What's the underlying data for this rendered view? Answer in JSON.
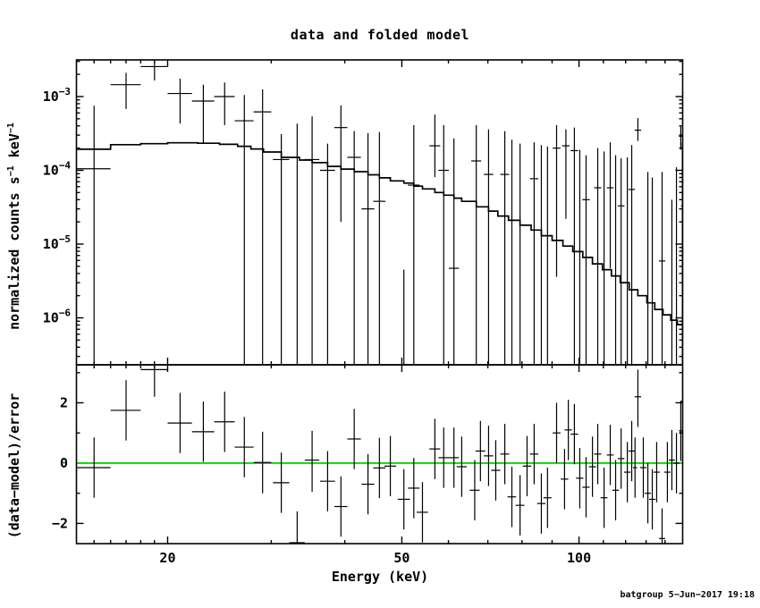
{
  "title": "data and folded model",
  "footer": {
    "credit": "batgroup  5−Jun−2017 19:18"
  },
  "colors": {
    "foreground": "#000000",
    "background": "#ffffff",
    "zero_line": "#00dd00"
  },
  "chart_data": {
    "type": "errorbar",
    "title": "data and folded model",
    "xlabel": "Energy (keV)",
    "xscale": "log",
    "xlim": [
      14,
      150
    ],
    "xticks_major": [
      20,
      50,
      100
    ],
    "xticks_minor": [
      15,
      16,
      17,
      18,
      19,
      30,
      40,
      60,
      70,
      80,
      90,
      110,
      120,
      130,
      140
    ],
    "legend": "none",
    "grid": false,
    "panels": {
      "top": {
        "ylabel": "normalized counts s−1 keV−1",
        "ylabel_parts": {
          "text1": "normalized counts s",
          "sup1": "−1",
          "text2": " keV",
          "sup2": "−1"
        },
        "yscale": "log",
        "ylim": [
          2.31e-07,
          0.00314
        ],
        "ytick_mantissa": "10",
        "yticks_exp": [
          -3,
          -4,
          -5,
          -6
        ],
        "model_steps": [
          [
            14,
            0.000193
          ],
          [
            16,
            0.000223
          ],
          [
            18,
            0.00023
          ],
          [
            20,
            0.000236
          ],
          [
            22.5,
            0.000233
          ],
          [
            24.5,
            0.000225
          ],
          [
            26.3,
            0.000212
          ],
          [
            27.7,
            0.000195
          ],
          [
            29.1,
            0.000177
          ],
          [
            31.2,
            0.00015
          ],
          [
            33.5,
            0.000138
          ],
          [
            35.2,
            0.000127
          ],
          [
            37.4,
            0.000113
          ],
          [
            39.4,
            0.000104
          ],
          [
            41.5,
            9.6e-05
          ],
          [
            43.8,
            8.7e-05
          ],
          [
            45.8,
            7.9e-05
          ],
          [
            47.8,
            7.2e-05
          ],
          [
            50.4,
            6.7e-05
          ],
          [
            52.4,
            6.1e-05
          ],
          [
            54.2,
            5.6e-05
          ],
          [
            56.9,
            5e-05
          ],
          [
            58.9,
            4.6e-05
          ],
          [
            61.3,
            4.2e-05
          ],
          [
            63.2,
            3.8e-05
          ],
          [
            66.9,
            3.2e-05
          ],
          [
            70.2,
            2.8e-05
          ],
          [
            72.8,
            2.4e-05
          ],
          [
            75.9,
            2.1e-05
          ],
          [
            79.4,
            1.8e-05
          ],
          [
            82.9,
            1.55e-05
          ],
          [
            86.3,
            1.3e-05
          ],
          [
            90,
            1.12e-05
          ],
          [
            93.9,
            9.4e-06
          ],
          [
            97.6,
            7.9e-06
          ],
          [
            101.5,
            6.6e-06
          ],
          [
            105.4,
            5.4e-06
          ],
          [
            109.6,
            4.5e-06
          ],
          [
            113.5,
            3.7e-06
          ],
          [
            117.5,
            3e-06
          ],
          [
            121.7,
            2.4e-06
          ],
          [
            125.9,
            2e-06
          ],
          [
            130.4,
            1.6e-06
          ],
          [
            134.5,
            1.3e-06
          ],
          [
            138.9,
            1.1e-06
          ],
          [
            143.2,
            9.3e-07
          ],
          [
            146.9,
            8.1e-07
          ]
        ],
        "points": [
          [
            15,
            1,
            0.000105,
            0.00075,
            null
          ],
          [
            17,
            1,
            0.00145,
            0.0021,
            0.00068
          ],
          [
            19,
            1,
            0.00255,
            null,
            0.00165
          ],
          [
            21,
            1,
            0.0011,
            0.00175,
            0.00043
          ],
          [
            23,
            1,
            0.00087,
            0.00145,
            0.00023
          ],
          [
            25,
            1,
            0.001,
            0.00155,
            0.00041
          ],
          [
            27,
            1,
            0.00047,
            0.00105,
            null
          ],
          [
            29,
            1,
            0.00062,
            0.00125,
            null
          ],
          [
            31.2,
            1,
            0.00014,
            0.00031,
            null
          ],
          [
            33.2,
            1,
            null,
            0.00043,
            null
          ],
          [
            35.2,
            1,
            0.00014,
            0.00054,
            null
          ],
          [
            37.4,
            1.1,
            0.0001,
            0.00023,
            null
          ],
          [
            39.4,
            1,
            0.00038,
            0.00076,
            2e-05
          ],
          [
            41.5,
            1.1,
            0.00015,
            0.00034,
            null
          ],
          [
            43.8,
            1.1,
            3e-05,
            0.00032,
            null
          ],
          [
            45.8,
            1.1,
            3.8e-05,
            0.00033,
            null
          ],
          [
            50.4,
            1.2,
            null,
            4.5e-06,
            null
          ],
          [
            52.4,
            1.2,
            6.3e-05,
            0.00041,
            null
          ],
          [
            56.9,
            1.2,
            0.000215,
            0.00057,
            8.1e-05
          ],
          [
            58.9,
            1.2,
            0.0001,
            0.00041,
            null
          ],
          [
            61.3,
            1.2,
            4.7e-06,
            0.00027,
            null
          ],
          [
            66.9,
            1.3,
            0.000134,
            0.00041,
            null
          ],
          [
            70.2,
            1.3,
            8.8e-05,
            0.00036,
            null
          ],
          [
            74.8,
            1.3,
            8.8e-05,
            0.00034,
            null
          ],
          [
            76.9,
            1.3,
            null,
            0.00026,
            null
          ],
          [
            79.4,
            1.35,
            null,
            0.00023,
            null
          ],
          [
            83.9,
            1.4,
            7.7e-05,
            0.00024,
            null
          ],
          [
            86.3,
            1.4,
            null,
            0.00022,
            null
          ],
          [
            88.4,
            1.4,
            null,
            0.00021,
            null
          ],
          [
            91.6,
            1.4,
            0.0002,
            0.00041,
            3.6e-06
          ],
          [
            95,
            1.4,
            0.000215,
            0.00036,
            2.2e-05
          ],
          [
            98.2,
            1.45,
            0.000185,
            0.00038,
            null
          ],
          [
            100.3,
            1.45,
            null,
            0.00019,
            null
          ],
          [
            102.8,
            1.5,
            4e-05,
            0.00016,
            null
          ],
          [
            107.6,
            1.5,
            5.8e-05,
            0.0002,
            null
          ],
          [
            110.3,
            1.5,
            null,
            0.00018,
            null
          ],
          [
            113,
            1.5,
            5.8e-05,
            0.00024,
            4.7e-06
          ],
          [
            115.4,
            1.5,
            null,
            0.00016,
            null
          ],
          [
            117.9,
            1.55,
            3.3e-05,
            0.000145,
            null
          ],
          [
            120.8,
            1.55,
            null,
            0.00015,
            null
          ],
          [
            122.9,
            1.6,
            5.5e-05,
            0.00022,
            null
          ],
          [
            125.9,
            1.6,
            0.00035,
            0.00051,
            0.00025
          ],
          [
            130.9,
            1.6,
            null,
            9.5e-05,
            null
          ],
          [
            133.2,
            1.65,
            null,
            8e-05,
            null
          ],
          [
            138.4,
            1.7,
            5.9e-06,
            9.5e-05,
            null
          ],
          [
            143.8,
            1.7,
            null,
            4e-05,
            null
          ],
          [
            146.4,
            1.7,
            null,
            0.00011,
            null
          ],
          [
            148.9,
            1.1,
            0.00029,
            0.00039,
            0.00019
          ],
          [
            149.8,
            0.8,
            3.3e-05,
            0.00024,
            null
          ]
        ]
      },
      "bottom": {
        "ylabel": "(data−model)/error",
        "yscale": "linear",
        "ylim": [
          -2.67,
          3.26
        ],
        "yticks_major": [
          -2,
          0,
          2
        ],
        "yticks_minor": [
          -1,
          1,
          3
        ],
        "zero_line": 0,
        "points": [
          [
            15,
            1,
            -0.15,
            0.85,
            -1.15
          ],
          [
            17,
            1,
            1.75,
            2.75,
            0.75
          ],
          [
            19,
            1,
            3.1,
            null,
            2.2
          ],
          [
            21,
            1,
            1.33,
            2.33,
            0.33
          ],
          [
            23,
            1,
            1.04,
            2.04,
            0.04
          ],
          [
            25,
            1,
            1.37,
            2.37,
            0.37
          ],
          [
            27,
            1,
            0.53,
            1.53,
            -0.47
          ],
          [
            29,
            1,
            0.02,
            1.04,
            -1.0
          ],
          [
            31.2,
            1,
            -0.65,
            0.35,
            -1.65
          ],
          [
            33.2,
            1,
            -2.64,
            -1.6,
            null
          ],
          [
            35.2,
            1,
            0.1,
            1.07,
            -0.95
          ],
          [
            37.4,
            1.1,
            -0.6,
            0.4,
            -1.6
          ],
          [
            39.4,
            1,
            -1.44,
            -0.44,
            -2.44
          ],
          [
            41.5,
            1.1,
            0.8,
            1.8,
            -0.2
          ],
          [
            43.8,
            1.1,
            -0.7,
            0.3,
            -1.7
          ],
          [
            45.8,
            1.1,
            -0.16,
            0.84,
            -1.16
          ],
          [
            47.8,
            1.1,
            -0.1,
            0.9,
            -1.1
          ],
          [
            50.4,
            1.2,
            -1.2,
            -0.2,
            -2.2
          ],
          [
            52.4,
            1.2,
            -0.83,
            0.17,
            -1.83
          ],
          [
            54.2,
            1.2,
            -1.63,
            -0.63,
            -2.63
          ],
          [
            56.9,
            1.2,
            0.47,
            1.47,
            -0.53
          ],
          [
            58.9,
            1.2,
            0.18,
            1.18,
            -0.82
          ],
          [
            61.3,
            1.2,
            0.18,
            1.18,
            -0.82
          ],
          [
            63.2,
            1.25,
            -0.12,
            0.88,
            -1.12
          ],
          [
            66.5,
            1.3,
            -0.9,
            0.1,
            -1.9
          ],
          [
            68,
            1.3,
            0.4,
            1.4,
            -0.6
          ],
          [
            70.2,
            1.3,
            0.24,
            1.24,
            -0.76
          ],
          [
            72.2,
            1.3,
            -0.24,
            0.76,
            -1.24
          ],
          [
            74.8,
            1.3,
            0.3,
            1.3,
            -0.7
          ],
          [
            76.9,
            1.3,
            -1.12,
            -0.12,
            -2.12
          ],
          [
            79.4,
            1.35,
            -1.4,
            -0.4,
            -2.4
          ],
          [
            81.6,
            1.35,
            -0.1,
            0.9,
            -1.1
          ],
          [
            83.9,
            1.4,
            0.3,
            1.3,
            -0.7
          ],
          [
            86.3,
            1.4,
            -1.34,
            -0.34,
            -2.34
          ],
          [
            88.4,
            1.4,
            -1.15,
            -0.15,
            -2.15
          ],
          [
            91.6,
            1.4,
            1.0,
            2.0,
            0.0
          ],
          [
            94.5,
            1.4,
            -0.53,
            0.47,
            -1.53
          ],
          [
            95.9,
            1.4,
            1.1,
            2.1,
            0.1
          ],
          [
            98.2,
            1.45,
            0.96,
            1.96,
            -0.04
          ],
          [
            100.3,
            1.45,
            -0.5,
            0.5,
            -1.5
          ],
          [
            102.8,
            1.5,
            -0.8,
            0.2,
            -1.8
          ],
          [
            105.4,
            1.5,
            -0.12,
            0.88,
            -1.12
          ],
          [
            107.6,
            1.5,
            0.3,
            1.3,
            -0.7
          ],
          [
            110.3,
            1.5,
            -1.15,
            -0.15,
            -2.15
          ],
          [
            113,
            1.5,
            0.27,
            1.27,
            -0.73
          ],
          [
            115.4,
            1.5,
            -0.9,
            0.1,
            -1.9
          ],
          [
            117.9,
            1.55,
            0.15,
            1.15,
            -0.85
          ],
          [
            120.8,
            1.55,
            -0.3,
            0.7,
            -1.3
          ],
          [
            122.9,
            1.6,
            0.4,
            1.4,
            -0.6
          ],
          [
            124.5,
            1,
            -0.15,
            0.85,
            -1.15
          ],
          [
            125.9,
            1.6,
            2.2,
            3.1,
            1.2
          ],
          [
            128.6,
            1.6,
            -0.15,
            0.85,
            -1.15
          ],
          [
            130.9,
            1.6,
            -1.0,
            0.0,
            -2.0
          ],
          [
            133.2,
            1.65,
            -1.2,
            -0.2,
            -2.2
          ],
          [
            135.5,
            1.65,
            -0.3,
            0.7,
            -1.3
          ],
          [
            138.4,
            1.7,
            -2.5,
            -1.5,
            null
          ],
          [
            141.3,
            1.7,
            -0.3,
            0.7,
            -1.3
          ],
          [
            143.8,
            1.7,
            0.1,
            1.1,
            -0.9
          ],
          [
            146.4,
            1.7,
            0.0,
            1.0,
            -1.0
          ],
          [
            148.9,
            1.1,
            1.07,
            2.07,
            0.07
          ],
          [
            150,
            0.8,
            2.05,
            3.05,
            1.05
          ]
        ]
      }
    }
  }
}
